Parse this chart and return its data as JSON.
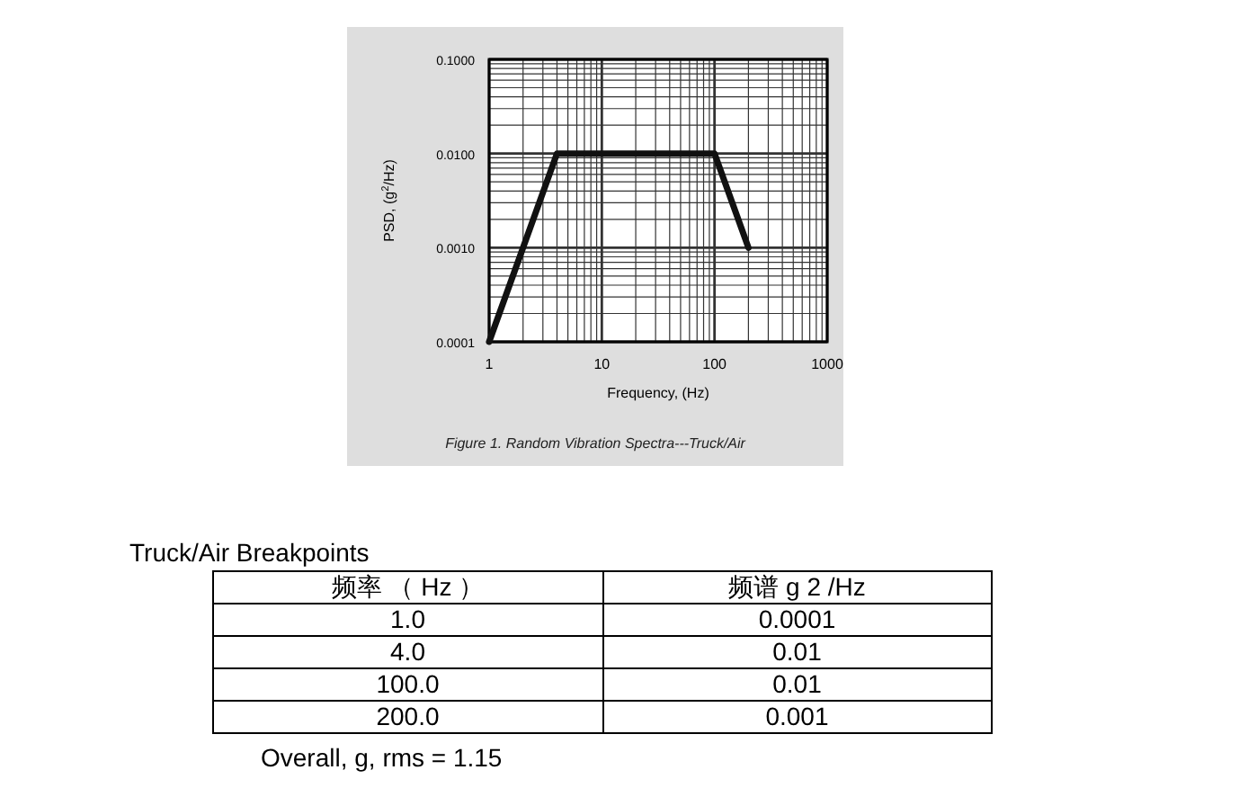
{
  "chart_data": [
    {
      "type": "line",
      "xlabel": "Frequency, (Hz)",
      "ylabel": "PSD, (g$^{2}$/Hz)",
      "log": "xy",
      "x": [
        1,
        4,
        100,
        200
      ],
      "series": [
        {
          "color": "#111111",
          "values": [
            0.0001,
            0.01,
            0.01,
            0.001
          ]
        }
      ],
      "xlim": [
        1,
        1000
      ],
      "ylim": [
        0.0001,
        0.1
      ],
      "xticks": [
        1,
        10,
        100,
        1000
      ],
      "yticks": [
        {
          "value": 0.0001,
          "label": "0.0001"
        },
        {
          "value": 0.001,
          "label": "0.0010"
        },
        {
          "value": 0.01,
          "label": "0.0100"
        },
        {
          "value": 0.1,
          "label": "0.1000"
        }
      ],
      "grid": true,
      "marker": "none",
      "line_style": "solid",
      "annotations": [
        "Figure 1. Random Vibration Spectra---Truck/Air"
      ]
    },
    {
      "type": "other",
      "title": "Truck/Air Breakpoints",
      "annotations": [
        "频率 （ Hz ）",
        "频谱  g 2 /Hz",
        "1.0",
        "0.0001",
        "4.0",
        "0.01",
        "100.0",
        "0.01",
        "200.0",
        "0.001",
        "Overall, g, rms = 1.15"
      ]
    }
  ]
}
